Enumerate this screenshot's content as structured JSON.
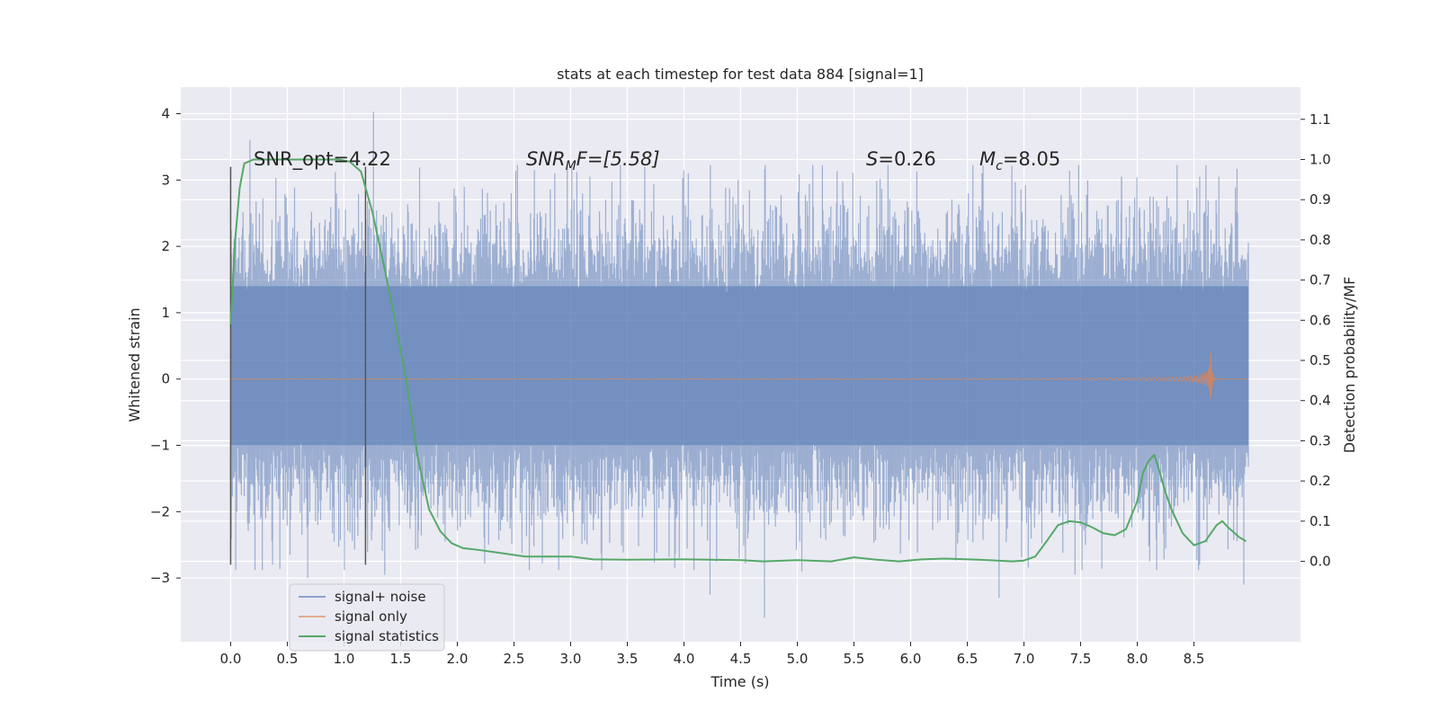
{
  "chart_data": {
    "type": "line",
    "title": "stats at each timestep for test data 884 [signal=1]",
    "xlabel": "Time (s)",
    "ylabel": "Whitened strain",
    "ylabel_right": "Detection probability/MF",
    "xlim": [
      -0.44,
      9.44
    ],
    "ylim": [
      -3.96,
      4.4
    ],
    "ylim_right": [
      -0.2,
      1.18
    ],
    "x_ticks": [
      0.0,
      0.5,
      1.0,
      1.5,
      2.0,
      2.5,
      3.0,
      3.5,
      4.0,
      4.5,
      5.0,
      5.5,
      6.0,
      6.5,
      7.0,
      7.5,
      8.0,
      8.5
    ],
    "x_tick_labels": [
      "0.0",
      "0.5",
      "1.0",
      "1.5",
      "2.0",
      "2.5",
      "3.0",
      "3.5",
      "4.0",
      "4.5",
      "5.0",
      "5.5",
      "6.0",
      "6.5",
      "7.0",
      "7.5",
      "8.0",
      "8.5"
    ],
    "y_ticks": [
      -3,
      -2,
      -1,
      0,
      1,
      2,
      3,
      4
    ],
    "y_tick_labels": [
      "−3",
      "−2",
      "−1",
      "0",
      "1",
      "2",
      "3",
      "4"
    ],
    "y_right_ticks": [
      0.0,
      0.1,
      0.2,
      0.3,
      0.4,
      0.5,
      0.6,
      0.7,
      0.8,
      0.9,
      1.0,
      1.1
    ],
    "y_right_tick_labels": [
      "0.0",
      "0.1",
      "0.2",
      "0.3",
      "0.4",
      "0.5",
      "0.6",
      "0.7",
      "0.8",
      "0.9",
      "1.0",
      "1.1"
    ],
    "grid": true,
    "legend_position": "bottom-left",
    "annotations": {
      "snr_opt": "SNR_opt=4.22",
      "snr_mf_main": "SNR",
      "snr_mf_sub": "M",
      "snr_mf_tail": "F=[5.58]",
      "s_var": "S",
      "s_val": "=0.26",
      "mc_var": "M",
      "mc_sub": "c",
      "mc_val": "=8.05"
    },
    "vertical_markers": [
      0.0,
      1.19
    ],
    "marker_range": [
      -2.8,
      3.2
    ],
    "series": [
      {
        "name": "signal+ noise",
        "color": "#4c72b0",
        "style": "dense-noise",
        "x_range": [
          0.0,
          8.98
        ],
        "band_inner": [
          -1.0,
          1.4
        ],
        "extremes_max": 4.03,
        "extremes_min": -3.6,
        "spikes": [
          {
            "x": 0.17,
            "y": 3.6
          },
          {
            "x": 0.68,
            "y": -3.0
          },
          {
            "x": 0.37,
            "y": -2.8
          },
          {
            "x": 1.26,
            "y": 4.03
          },
          {
            "x": 1.36,
            "y": -2.95
          },
          {
            "x": 2.68,
            "y": 3.15
          },
          {
            "x": 2.86,
            "y": 3.1
          },
          {
            "x": 3.17,
            "y": 3.05
          },
          {
            "x": 4.23,
            "y": -3.25
          },
          {
            "x": 4.71,
            "y": -3.6
          },
          {
            "x": 5.04,
            "y": -2.9
          },
          {
            "x": 6.63,
            "y": 3.1
          },
          {
            "x": 6.78,
            "y": -3.3
          },
          {
            "x": 7.45,
            "y": -2.95
          },
          {
            "x": 7.86,
            "y": 3.05
          },
          {
            "x": 8.11,
            "y": -2.75
          },
          {
            "x": 8.55,
            "y": -2.8
          },
          {
            "x": 8.72,
            "y": 3.05
          },
          {
            "x": 8.88,
            "y": 3.17
          },
          {
            "x": 8.94,
            "y": -3.1
          }
        ]
      },
      {
        "name": "signal only",
        "color": "#dd8452",
        "style": "chirp",
        "x_range": [
          0.0,
          8.98
        ],
        "merger_time": 8.65,
        "peak_amplitude": 0.45
      },
      {
        "name": "signal statistics",
        "color": "#55a868",
        "axis": "right",
        "x": [
          0.0,
          0.04,
          0.08,
          0.12,
          0.2,
          0.4,
          0.7,
          0.95,
          1.05,
          1.15,
          1.25,
          1.35,
          1.45,
          1.55,
          1.65,
          1.75,
          1.85,
          1.95,
          2.05,
          2.2,
          2.4,
          2.6,
          2.8,
          3.0,
          3.2,
          3.5,
          4.0,
          4.5,
          4.7,
          5.0,
          5.3,
          5.5,
          5.7,
          5.9,
          6.1,
          6.3,
          6.6,
          6.9,
          7.0,
          7.1,
          7.2,
          7.3,
          7.4,
          7.5,
          7.6,
          7.7,
          7.8,
          7.9,
          8.0,
          8.05,
          8.1,
          8.15,
          8.2,
          8.25,
          8.3,
          8.4,
          8.5,
          8.6,
          8.7,
          8.75,
          8.8,
          8.9,
          8.96
        ],
        "y": [
          0.59,
          0.8,
          0.93,
          0.99,
          1.0,
          1.0,
          1.0,
          1.0,
          0.995,
          0.97,
          0.87,
          0.74,
          0.6,
          0.45,
          0.26,
          0.13,
          0.075,
          0.045,
          0.033,
          0.028,
          0.02,
          0.012,
          0.012,
          0.012,
          0.005,
          0.004,
          0.005,
          0.003,
          0.0,
          0.003,
          0.0,
          0.01,
          0.004,
          0.0,
          0.005,
          0.007,
          0.004,
          0.0,
          0.002,
          0.012,
          0.05,
          0.09,
          0.1,
          0.097,
          0.085,
          0.07,
          0.065,
          0.08,
          0.15,
          0.22,
          0.25,
          0.265,
          0.22,
          0.17,
          0.13,
          0.07,
          0.04,
          0.05,
          0.09,
          0.1,
          0.085,
          0.06,
          0.05
        ]
      }
    ]
  }
}
